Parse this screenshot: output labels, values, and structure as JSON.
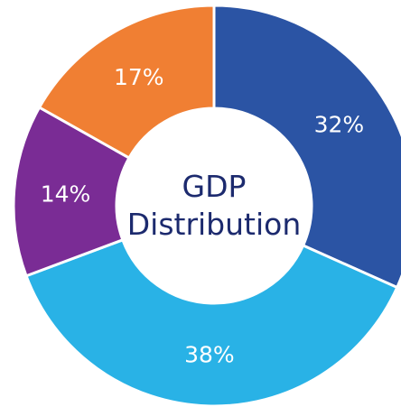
{
  "chart_data": {
    "type": "pie",
    "title": "GDP Distribution",
    "values": [
      32,
      38,
      14,
      17
    ],
    "value_labels": [
      "32%",
      "38%",
      "14%",
      "17%"
    ],
    "colors": [
      "#2b54a4",
      "#29b2e6",
      "#7a2c95",
      "#f07f33"
    ],
    "donut": true
  }
}
